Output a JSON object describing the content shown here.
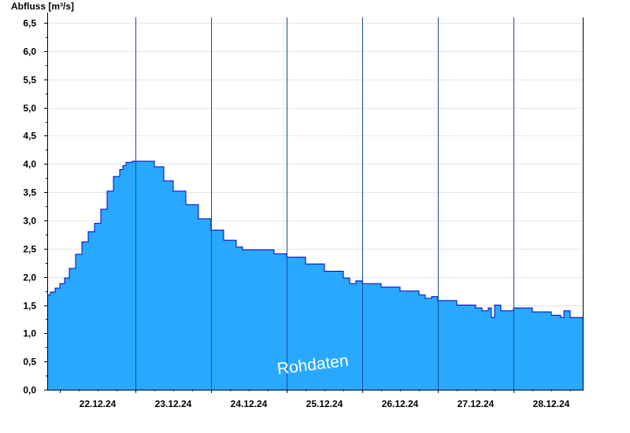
{
  "chart_data": {
    "type": "area",
    "ylabel": "Abfluss [m³/s]",
    "watermark": "Rohdaten",
    "ylim": [
      0,
      6.6
    ],
    "yticks": [
      0,
      0.5,
      1.0,
      1.5,
      2.0,
      2.5,
      3.0,
      3.5,
      4.0,
      4.5,
      5.0,
      5.5,
      6.0,
      6.5
    ],
    "ytick_labels": [
      "0,0",
      "0,5",
      "1,0",
      "1,5",
      "2,0",
      "2,5",
      "3,0",
      "3,5",
      "4,0",
      "4,5",
      "5,0",
      "5,5",
      "6,0",
      "6,5"
    ],
    "xlim": [
      "2024-12-21T20:00",
      "2024-12-28T22:00"
    ],
    "day_boundaries": [
      "2024-12-22T00:00",
      "2024-12-23T00:00",
      "2024-12-24T00:00",
      "2024-12-25T00:00",
      "2024-12-26T00:00",
      "2024-12-27T00:00",
      "2024-12-28T00:00"
    ],
    "xtick_labels": [
      "22.12.24",
      "23.12.24",
      "24.12.24",
      "25.12.24",
      "26.12.24",
      "27.12.24",
      "28.12.24"
    ],
    "grid": true,
    "fill_color": "#29a8ff",
    "line_color": "#0000c8",
    "series": [
      {
        "x": [
          "2024-12-21T20:00",
          "2024-12-21T21:00",
          "2024-12-21T22:30",
          "2024-12-22T00:00",
          "2024-12-22T01:30",
          "2024-12-22T03:00",
          "2024-12-22T05:00",
          "2024-12-22T07:00",
          "2024-12-22T09:00",
          "2024-12-22T11:00",
          "2024-12-22T13:00",
          "2024-12-22T15:00",
          "2024-12-22T17:00",
          "2024-12-22T19:00",
          "2024-12-22T20:00",
          "2024-12-22T21:00",
          "2024-12-22T23:00",
          "2024-12-23T00:00",
          "2024-12-23T01:30",
          "2024-12-23T03:00",
          "2024-12-23T06:00",
          "2024-12-23T09:00",
          "2024-12-23T12:00",
          "2024-12-23T16:00",
          "2024-12-23T20:00",
          "2024-12-24T00:00",
          "2024-12-24T04:00",
          "2024-12-24T08:00",
          "2024-12-24T10:00",
          "2024-12-24T12:00",
          "2024-12-24T16:00",
          "2024-12-24T20:00",
          "2024-12-25T00:00",
          "2024-12-25T06:00",
          "2024-12-25T12:00",
          "2024-12-25T18:00",
          "2024-12-25T20:00",
          "2024-12-25T22:00",
          "2024-12-26T00:00",
          "2024-12-26T06:00",
          "2024-12-26T12:00",
          "2024-12-26T18:00",
          "2024-12-26T20:00",
          "2024-12-26T22:00",
          "2024-12-27T00:00",
          "2024-12-27T06:00",
          "2024-12-27T10:00",
          "2024-12-27T12:00",
          "2024-12-27T14:00",
          "2024-12-27T16:00",
          "2024-12-27T17:00",
          "2024-12-27T18:00",
          "2024-12-27T20:00",
          "2024-12-28T00:00",
          "2024-12-28T06:00",
          "2024-12-28T12:00",
          "2024-12-28T14:00",
          "2024-12-28T15:00",
          "2024-12-28T16:00",
          "2024-12-28T18:00",
          "2024-12-28T22:00"
        ],
        "y": [
          1.68,
          1.73,
          1.8,
          1.88,
          1.98,
          2.15,
          2.4,
          2.62,
          2.8,
          2.95,
          3.2,
          3.52,
          3.78,
          3.9,
          3.97,
          4.03,
          4.05,
          4.05,
          4.05,
          4.05,
          3.95,
          3.7,
          3.52,
          3.28,
          3.03,
          2.83,
          2.65,
          2.53,
          2.48,
          2.48,
          2.48,
          2.41,
          2.35,
          2.23,
          2.1,
          1.98,
          1.88,
          1.93,
          1.88,
          1.82,
          1.75,
          1.68,
          1.62,
          1.65,
          1.58,
          1.5,
          1.5,
          1.45,
          1.4,
          1.45,
          1.28,
          1.5,
          1.4,
          1.45,
          1.38,
          1.32,
          1.32,
          1.28,
          1.4,
          1.28,
          1.25
        ]
      }
    ]
  }
}
